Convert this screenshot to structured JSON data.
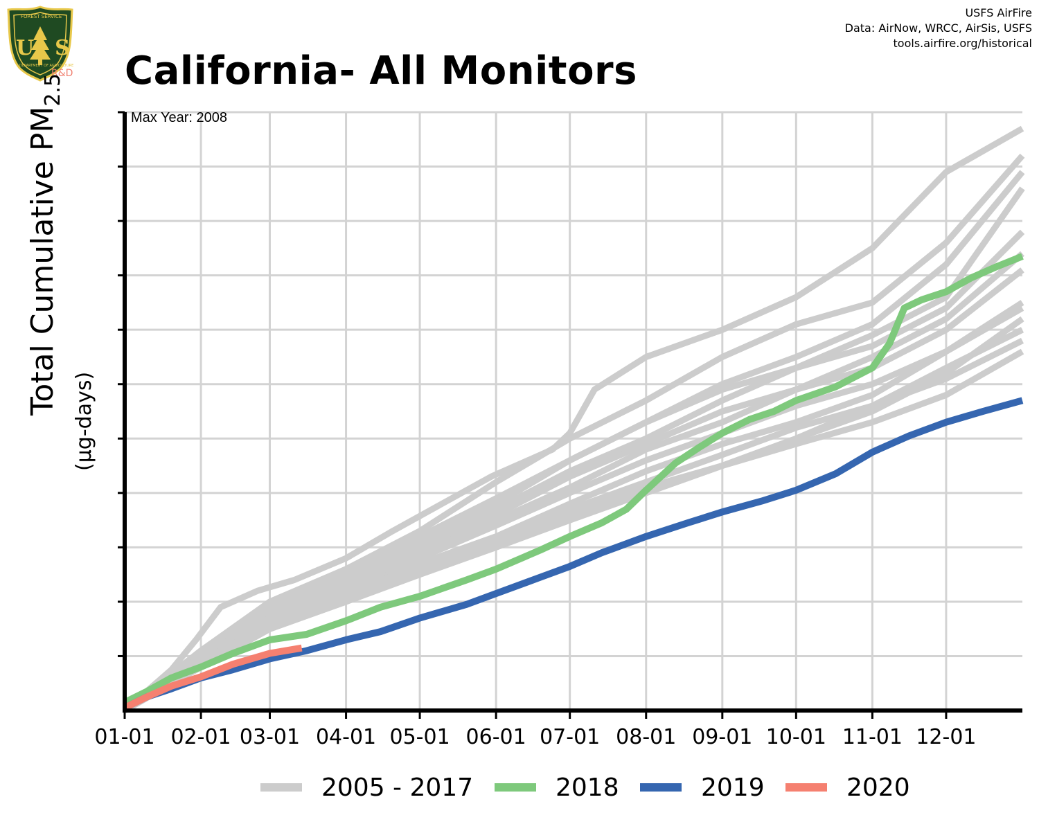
{
  "header": {
    "title": "California- All Monitors",
    "credits": [
      "USFS AirFire",
      "Data: AirNow, WRCC, AirSis, USFS",
      "tools.airfire.org/historical"
    ],
    "logo_text": {
      "top": "FOREST SERVICE",
      "center": "US",
      "bottom": "DEPARTMENT OF AGRICULTURE",
      "badge": "R&D"
    }
  },
  "annotation": "Max Year: 2008",
  "colors": {
    "historical": "#cccccc",
    "y2018": "#7ec97c",
    "y2019": "#3566b0",
    "y2020": "#f58070",
    "grid": "#d3d3d3",
    "axis": "#000000"
  },
  "chart_data": {
    "type": "line",
    "title": "California- All Monitors",
    "xlabel": "",
    "ylabel": "Total Cumulative PM",
    "ylabel_subscript": "2.5",
    "yunits": "(µg-days)",
    "y_tick_labels_shown": false,
    "x_ticks": [
      "01-01",
      "02-01",
      "03-01",
      "04-01",
      "05-01",
      "06-01",
      "07-01",
      "08-01",
      "09-01",
      "10-01",
      "11-01",
      "12-01"
    ],
    "x_tick_days": [
      1,
      32,
      60,
      91,
      121,
      152,
      182,
      213,
      244,
      274,
      305,
      335
    ],
    "xlim": [
      1,
      366
    ],
    "ylim": [
      0,
      11
    ],
    "y_units_note": "relative units (axis unlabeled); 1 unit = one gridline interval",
    "grid": true,
    "legend_position": "bottom",
    "legend": [
      "2005 - 2017",
      "2018",
      "2019",
      "2020"
    ],
    "series": [
      {
        "name": "2005 - 2017",
        "group": "historical",
        "x": [
          1,
          20,
          30,
          40,
          55,
          70,
          91,
          110,
          130,
          150,
          175,
          182,
          192,
          213,
          244,
          274,
          305,
          335,
          366
        ],
        "y": [
          0,
          0.75,
          1.3,
          1.9,
          2.2,
          2.4,
          2.8,
          3.3,
          3.8,
          4.3,
          4.8,
          5.1,
          5.9,
          6.5,
          7.0,
          7.6,
          8.5,
          9.9,
          10.7
        ]
      },
      {
        "name": "2005 - 2017",
        "group": "historical",
        "x": [
          1,
          32,
          60,
          91,
          121,
          152,
          182,
          213,
          244,
          274,
          305,
          335,
          366
        ],
        "y": [
          0,
          1.1,
          2.0,
          2.6,
          3.3,
          4.2,
          5.0,
          5.7,
          6.5,
          7.1,
          7.5,
          8.6,
          10.2
        ]
      },
      {
        "name": "2005 - 2017",
        "group": "historical",
        "x": [
          1,
          32,
          60,
          91,
          121,
          152,
          182,
          213,
          244,
          274,
          305,
          335,
          366
        ],
        "y": [
          0,
          1.0,
          1.9,
          2.5,
          3.2,
          3.9,
          4.6,
          5.3,
          6.0,
          6.5,
          7.1,
          8.2,
          9.9
        ]
      },
      {
        "name": "2005 - 2017",
        "group": "historical",
        "x": [
          1,
          32,
          60,
          91,
          121,
          152,
          182,
          213,
          244,
          274,
          305,
          335,
          366
        ],
        "y": [
          0,
          1.1,
          1.85,
          2.55,
          3.15,
          3.8,
          4.6,
          5.3,
          5.9,
          6.3,
          6.9,
          7.6,
          9.6
        ]
      },
      {
        "name": "2005 - 2017",
        "group": "historical",
        "x": [
          1,
          32,
          60,
          91,
          121,
          152,
          182,
          213,
          244,
          274,
          305,
          335,
          366
        ],
        "y": [
          0,
          0.95,
          1.8,
          2.4,
          3.1,
          3.7,
          4.4,
          5.0,
          5.7,
          6.3,
          6.7,
          7.4,
          8.8
        ]
      },
      {
        "name": "2005 - 2017",
        "group": "historical",
        "x": [
          1,
          32,
          60,
          91,
          121,
          152,
          182,
          213,
          244,
          274,
          305,
          335,
          366
        ],
        "y": [
          0,
          1.0,
          1.7,
          2.3,
          3.0,
          3.6,
          4.3,
          4.9,
          5.5,
          5.9,
          6.5,
          7.2,
          8.4
        ]
      },
      {
        "name": "2005 - 2017",
        "group": "historical",
        "x": [
          1,
          32,
          60,
          91,
          121,
          152,
          182,
          213,
          244,
          274,
          305,
          335,
          366
        ],
        "y": [
          0,
          0.9,
          1.6,
          2.2,
          2.9,
          3.5,
          4.1,
          4.8,
          5.3,
          5.9,
          6.3,
          7.0,
          8.1
        ]
      },
      {
        "name": "2005 - 2017",
        "group": "historical",
        "x": [
          1,
          32,
          60,
          91,
          121,
          152,
          182,
          213,
          244,
          274,
          305,
          335,
          366
        ],
        "y": [
          0,
          0.85,
          1.6,
          2.1,
          2.8,
          3.4,
          4.0,
          4.6,
          5.1,
          5.6,
          6.0,
          6.6,
          7.5
        ]
      },
      {
        "name": "2005 - 2017",
        "group": "historical",
        "x": [
          1,
          32,
          60,
          91,
          121,
          152,
          182,
          213,
          244,
          274,
          305,
          335,
          366
        ],
        "y": [
          0,
          0.9,
          1.6,
          2.1,
          2.7,
          3.2,
          3.8,
          4.4,
          4.9,
          5.3,
          5.8,
          6.6,
          7.4
        ]
      },
      {
        "name": "2005 - 2017",
        "group": "historical",
        "x": [
          1,
          32,
          60,
          91,
          121,
          152,
          182,
          213,
          244,
          274,
          305,
          335,
          366
        ],
        "y": [
          0,
          0.8,
          1.5,
          2.0,
          2.6,
          3.1,
          3.6,
          4.1,
          4.5,
          5.0,
          5.5,
          6.2,
          7.2
        ]
      },
      {
        "name": "2005 - 2017",
        "group": "historical",
        "x": [
          1,
          32,
          60,
          91,
          121,
          152,
          182,
          213,
          244,
          274,
          305,
          335,
          366
        ],
        "y": [
          0,
          0.9,
          1.5,
          2.0,
          2.5,
          3.0,
          3.5,
          4.0,
          4.5,
          5.0,
          5.6,
          6.3,
          7.0
        ]
      },
      {
        "name": "2005 - 2017",
        "group": "historical",
        "x": [
          1,
          32,
          60,
          91,
          121,
          152,
          182,
          213,
          244,
          274,
          305,
          335,
          366
        ],
        "y": [
          0,
          0.8,
          1.5,
          2.1,
          2.6,
          3.1,
          3.6,
          4.0,
          4.5,
          4.9,
          5.3,
          5.8,
          6.6
        ]
      },
      {
        "name": "2005 - 2017",
        "group": "historical",
        "x": [
          1,
          32,
          60,
          91,
          121,
          152,
          182,
          213,
          244,
          274,
          305,
          335,
          366
        ],
        "y": [
          0,
          0.85,
          1.55,
          2.1,
          2.7,
          3.2,
          3.7,
          4.2,
          4.7,
          5.2,
          5.6,
          6.1,
          6.8
        ]
      },
      {
        "name": "2018",
        "group": "y2018",
        "x": [
          1,
          10,
          20,
          32,
          45,
          60,
          75,
          91,
          105,
          121,
          140,
          152,
          170,
          182,
          195,
          205,
          213,
          225,
          235,
          244,
          255,
          265,
          274,
          290,
          305,
          312,
          318,
          325,
          335,
          345,
          355,
          366
        ],
        "y": [
          0.15,
          0.35,
          0.6,
          0.8,
          1.05,
          1.3,
          1.4,
          1.65,
          1.9,
          2.1,
          2.4,
          2.6,
          2.95,
          3.2,
          3.45,
          3.7,
          4.05,
          4.55,
          4.85,
          5.1,
          5.35,
          5.5,
          5.7,
          5.95,
          6.3,
          6.75,
          7.4,
          7.55,
          7.7,
          7.95,
          8.15,
          8.35
        ]
      },
      {
        "name": "2019",
        "group": "y2019",
        "x": [
          1,
          10,
          20,
          32,
          45,
          60,
          75,
          91,
          105,
          121,
          140,
          152,
          170,
          182,
          195,
          213,
          230,
          244,
          260,
          274,
          290,
          305,
          320,
          335,
          350,
          366
        ],
        "y": [
          0.05,
          0.25,
          0.4,
          0.6,
          0.75,
          0.95,
          1.1,
          1.3,
          1.45,
          1.7,
          1.95,
          2.15,
          2.45,
          2.65,
          2.9,
          3.2,
          3.45,
          3.65,
          3.85,
          4.05,
          4.35,
          4.75,
          5.05,
          5.3,
          5.5,
          5.7
        ]
      },
      {
        "name": "2020",
        "group": "y2020",
        "x": [
          1,
          10,
          20,
          32,
          45,
          60,
          73
        ],
        "y": [
          0.05,
          0.25,
          0.45,
          0.62,
          0.85,
          1.05,
          1.15
        ]
      }
    ]
  },
  "legend": {
    "items": [
      {
        "label": "2005 - 2017",
        "color": "#cccccc"
      },
      {
        "label": "2018",
        "color": "#7ec97c"
      },
      {
        "label": "2019",
        "color": "#3566b0"
      },
      {
        "label": "2020",
        "color": "#f58070"
      }
    ]
  }
}
